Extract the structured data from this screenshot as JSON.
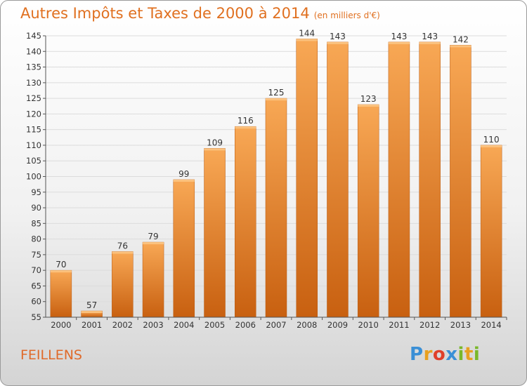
{
  "title": "Autres Impôts et Taxes de 2000 à 2014",
  "unit_note": "(en milliers d'€)",
  "commune": "FEILLENS",
  "logo": {
    "letters": [
      "P",
      "r",
      "o",
      "x",
      "i",
      "t",
      "i"
    ],
    "colors": [
      "#3a8fd6",
      "#e8a020",
      "#e0402a",
      "#3a8fd6",
      "#7ab82a",
      "#e8a020",
      "#7ab82a"
    ]
  },
  "chart_data": {
    "type": "bar",
    "categories": [
      "2000",
      "2001",
      "2002",
      "2003",
      "2004",
      "2005",
      "2006",
      "2007",
      "2008",
      "2009",
      "2010",
      "2011",
      "2012",
      "2013",
      "2014"
    ],
    "values": [
      70,
      57,
      76,
      79,
      99,
      109,
      116,
      125,
      144,
      143,
      123,
      143,
      143,
      142,
      110
    ],
    "ylim": [
      55,
      145
    ],
    "yticks": [
      55,
      60,
      65,
      70,
      75,
      80,
      85,
      90,
      95,
      100,
      105,
      110,
      115,
      120,
      125,
      130,
      135,
      140,
      145
    ],
    "grid": true,
    "bar_color_light": "#f8a855",
    "bar_color_dark": "#c86010"
  }
}
